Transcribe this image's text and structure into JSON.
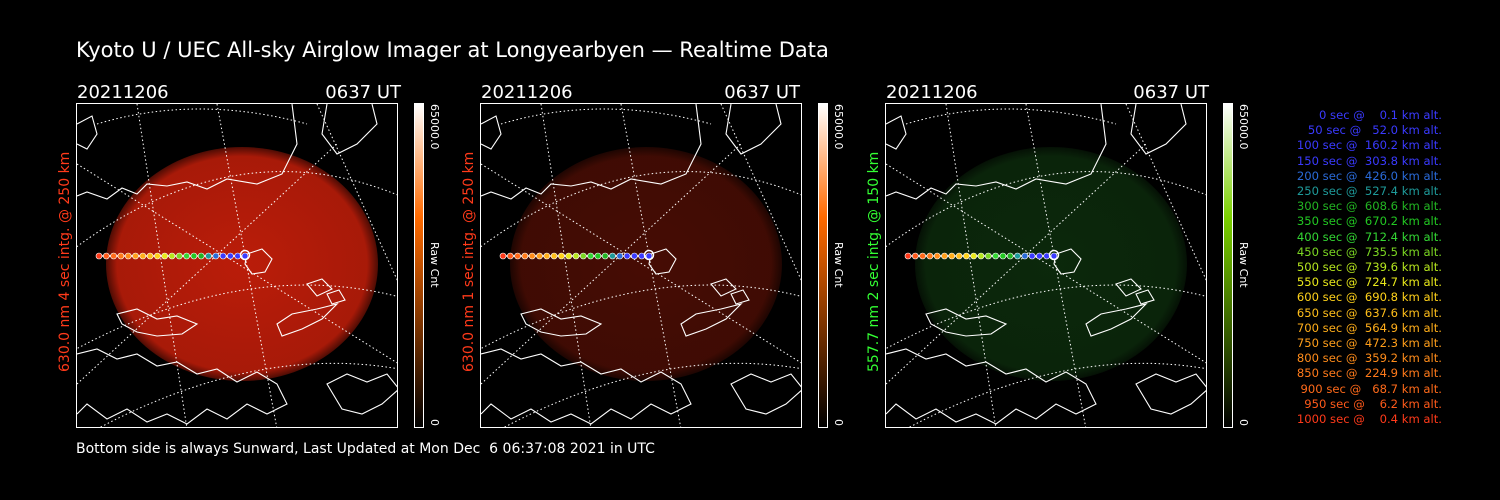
{
  "title": "Kyoto U / UEC All-sky Airglow Imager at Longyearbyen — Realtime Data",
  "footer": "Bottom side is always Sunward, Last Updated at Mon Dec  6 06:37:08 2021 in UTC",
  "panels": [
    {
      "date": "20211206",
      "time": "0637 UT",
      "side_label": "630.0 nm 4 sec intg. @ 250 km",
      "label_color": "#ff3a1a",
      "cb_max": "65000.0",
      "cb_unit": "Raw Cnt",
      "cb_min": "0",
      "glow_color": "#c41e0a",
      "glow_opacity": 0.95,
      "cb_top": "#ffffff",
      "cb_mid": "#ff6a00",
      "cb_bot": "#000000"
    },
    {
      "date": "20211206",
      "time": "0637 UT",
      "side_label": "630.0 nm 1 sec intg. @ 250 km",
      "label_color": "#ff3a1a",
      "cb_max": "65000.0",
      "cb_unit": "Raw Cnt",
      "cb_min": "0",
      "glow_color": "#4a0d04",
      "glow_opacity": 0.95,
      "cb_top": "#ffffff",
      "cb_mid": "#ff6a00",
      "cb_bot": "#000000"
    },
    {
      "date": "20211206",
      "time": "0637 UT",
      "side_label": "557.7 nm 2 sec intg. @ 150 km",
      "label_color": "#33ff33",
      "cb_max": "65000.0",
      "cb_unit": "Raw Cnt",
      "cb_min": "0",
      "glow_color": "#0c2a0c",
      "glow_opacity": 0.95,
      "cb_top": "#ffffff",
      "cb_mid": "#7bd000",
      "cb_bot": "#000000"
    }
  ],
  "legend": [
    {
      "text": "0 sec @    0.1 km alt.",
      "color": "#3a3aff"
    },
    {
      "text": "50 sec @   52.0 km alt.",
      "color": "#3a3aff"
    },
    {
      "text": "100 sec @  160.2 km alt.",
      "color": "#3a3aff"
    },
    {
      "text": "150 sec @  303.8 km alt.",
      "color": "#3a3aff"
    },
    {
      "text": "200 sec @  426.0 km alt.",
      "color": "#2a6ad8"
    },
    {
      "text": "250 sec @  527.4 km alt.",
      "color": "#1e9a9a"
    },
    {
      "text": "300 sec @  608.6 km alt.",
      "color": "#22b422"
    },
    {
      "text": "350 sec @  670.2 km alt.",
      "color": "#22c822"
    },
    {
      "text": "400 sec @  712.4 km alt.",
      "color": "#33d633"
    },
    {
      "text": "450 sec @  735.5 km alt.",
      "color": "#7bd622"
    },
    {
      "text": "500 sec @  739.6 km alt.",
      "color": "#b6e61e"
    },
    {
      "text": "550 sec @  724.7 km alt.",
      "color": "#e8e81a"
    },
    {
      "text": "600 sec @  690.8 km alt.",
      "color": "#ffd21a"
    },
    {
      "text": "650 sec @  637.6 km alt.",
      "color": "#ffbe1a"
    },
    {
      "text": "700 sec @  564.9 km alt.",
      "color": "#ffae1a"
    },
    {
      "text": "750 sec @  472.3 km alt.",
      "color": "#ff9e1a"
    },
    {
      "text": "800 sec @  359.2 km alt.",
      "color": "#ff8c1a"
    },
    {
      "text": "850 sec @  224.9 km alt.",
      "color": "#ff7a1a"
    },
    {
      "text": "900 sec @   68.7 km alt.",
      "color": "#ff6a1a"
    },
    {
      "text": "950 sec @    6.2 km alt.",
      "color": "#ff5a1a"
    },
    {
      "text": "1000 sec @    0.4 km alt.",
      "color": "#ff3a1a"
    }
  ]
}
